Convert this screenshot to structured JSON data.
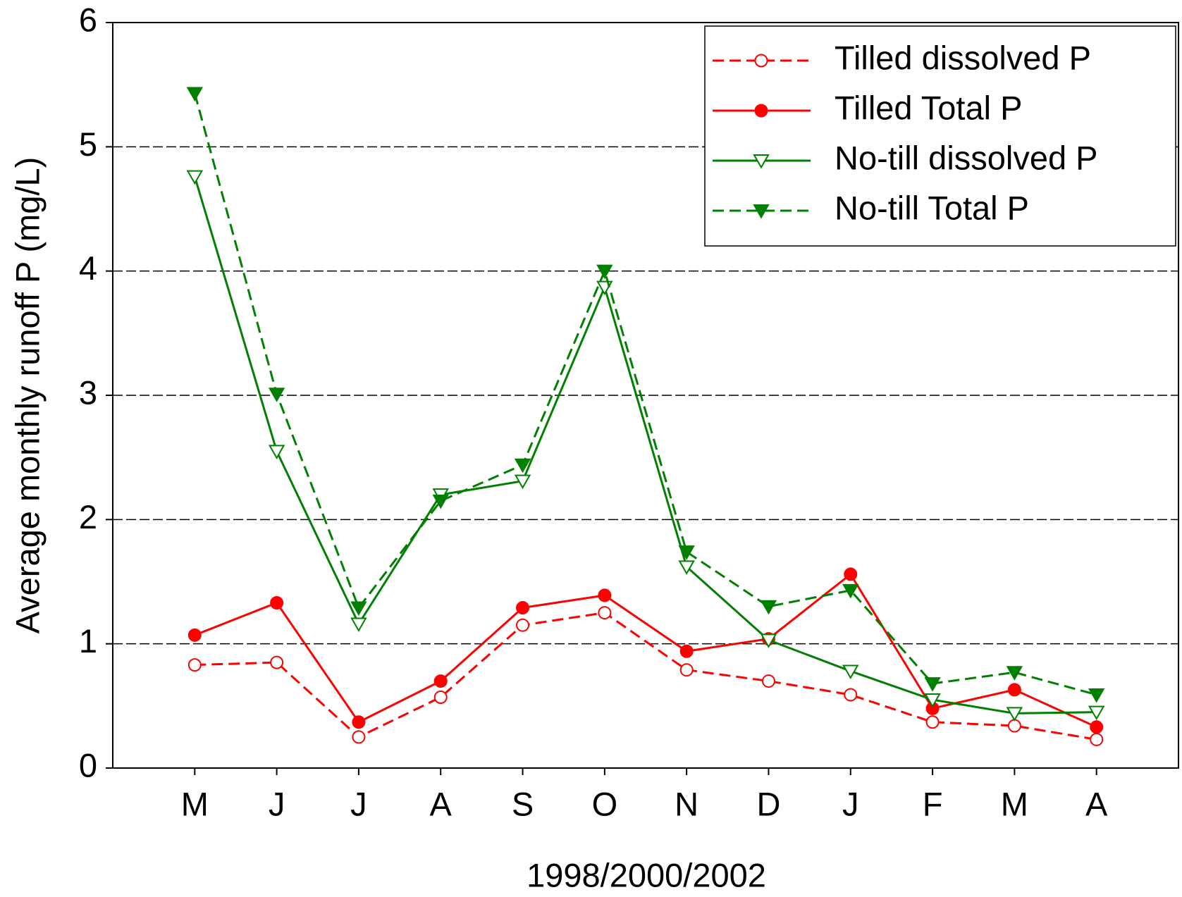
{
  "chart_data": {
    "type": "line",
    "xlabel": "1998/2000/2002",
    "ylabel": "Average monthly runoff P (mg/L)",
    "categories": [
      "M",
      "J",
      "J",
      "A",
      "S",
      "O",
      "N",
      "D",
      "J",
      "F",
      "M",
      "A"
    ],
    "ylim": [
      0,
      6
    ],
    "yticks": [
      0,
      1,
      2,
      3,
      4,
      5,
      6
    ],
    "grid": true,
    "legend": "upper right",
    "series": [
      {
        "name": "Tilled dissolved P",
        "color": "#ff0000",
        "dashed": true,
        "marker": "circle",
        "filled": false,
        "values": [
          0.83,
          0.85,
          0.25,
          0.57,
          1.15,
          1.25,
          0.79,
          0.7,
          0.59,
          0.37,
          0.34,
          0.23
        ]
      },
      {
        "name": "Tilled Total P",
        "color": "#ff0000",
        "dashed": false,
        "marker": "circle",
        "filled": true,
        "values": [
          1.07,
          1.33,
          0.37,
          0.7,
          1.29,
          1.39,
          0.94,
          1.04,
          1.56,
          0.48,
          0.63,
          0.33
        ]
      },
      {
        "name": "No-till dissolved P",
        "color": "#008000",
        "dashed": false,
        "marker": "triangle-down",
        "filled": false,
        "values": [
          4.76,
          2.55,
          1.16,
          2.2,
          2.31,
          3.87,
          1.62,
          1.03,
          0.78,
          0.55,
          0.44,
          0.45
        ]
      },
      {
        "name": "No-till Total P",
        "color": "#008000",
        "dashed": true,
        "marker": "triangle-down",
        "filled": true,
        "values": [
          5.43,
          3.01,
          1.29,
          2.15,
          2.44,
          4.0,
          1.74,
          1.3,
          1.43,
          0.68,
          0.77,
          0.59
        ]
      }
    ]
  }
}
